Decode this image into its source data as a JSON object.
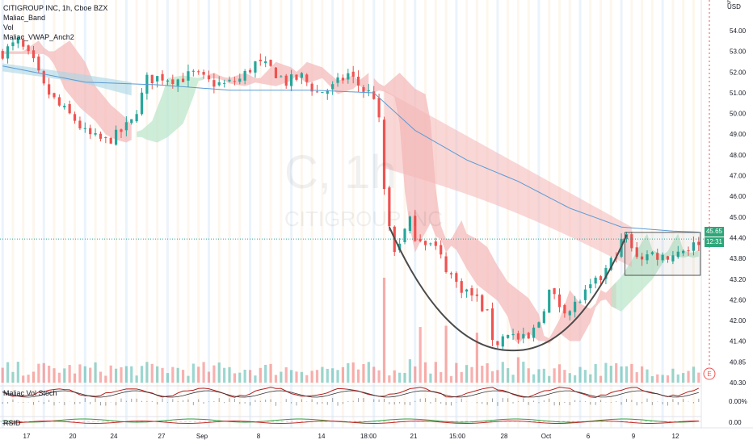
{
  "header": {
    "title": "CITIGROUP INC, 1h, Cboe BZX",
    "indicators": [
      "Maliac_Band",
      "Vol",
      "Maliac_VWAP_Anch2"
    ]
  },
  "subpanes": {
    "vol_stoch_label": "Maliac Vol Stoch",
    "vol_stoch_value": "0.00%",
    "rsid_label": "RSID",
    "rsid_value": "0.00"
  },
  "price_axis": {
    "currency": "USD",
    "top_marker": "5",
    "ticks": [
      "54.00",
      "53.00",
      "52.00",
      "51.00",
      "50.00",
      "49.00",
      "48.00",
      "47.00",
      "46.00",
      "45.00",
      "44.40",
      "43.80",
      "43.20",
      "42.60",
      "42.00",
      "41.40",
      "40.85",
      "40.30"
    ],
    "current_price": "45.65",
    "countdown": "12:31"
  },
  "time_axis": {
    "labels": [
      "17",
      "20",
      "24",
      "27",
      "Sep",
      "8",
      "14",
      "18:00",
      "21",
      "15:00",
      "28",
      "Oct",
      "6",
      "9",
      "12"
    ]
  },
  "event_marker": "E",
  "watermark": {
    "big": "C, 1h",
    "small": "CITIGROUP INC"
  },
  "colors": {
    "up": "#26a69a",
    "down": "#ef5350",
    "band_red": "#f4b6b6",
    "band_green": "#b9e6c9",
    "vwap": "#5b9bd5",
    "cup": "#4a4a4a"
  },
  "chart_data": {
    "type": "candlestick",
    "symbol": "CITIGROUP INC",
    "interval": "1h",
    "exchange": "Cboe BZX",
    "ylim": [
      40.3,
      54.5
    ],
    "close_path": [
      [
        0,
        52.6
      ],
      [
        3,
        53.0
      ],
      [
        6,
        52.2
      ],
      [
        8,
        51.3
      ],
      [
        11,
        50.6
      ],
      [
        14,
        50.1
      ],
      [
        16,
        49.6
      ],
      [
        18,
        49.4
      ],
      [
        20,
        49.3
      ],
      [
        22,
        49.5
      ],
      [
        25,
        50.0
      ],
      [
        27,
        51.0
      ],
      [
        28,
        51.6
      ],
      [
        31,
        51.7
      ],
      [
        34,
        51.6
      ],
      [
        37,
        51.8
      ],
      [
        40,
        51.5
      ],
      [
        43,
        51.4
      ],
      [
        46,
        51.6
      ],
      [
        49,
        52.2
      ],
      [
        52,
        52.0
      ],
      [
        55,
        51.5
      ],
      [
        58,
        51.7
      ],
      [
        61,
        51.1
      ],
      [
        64,
        51.3
      ],
      [
        67,
        51.8
      ],
      [
        70,
        51.2
      ],
      [
        72,
        51.0
      ],
      [
        73,
        50.0
      ],
      [
        74,
        47.5
      ],
      [
        75,
        46.1
      ],
      [
        76,
        45.2
      ],
      [
        77,
        45.6
      ],
      [
        79,
        46.3
      ],
      [
        80,
        45.8
      ],
      [
        82,
        45.6
      ],
      [
        84,
        45.3
      ],
      [
        86,
        44.6
      ],
      [
        88,
        44.0
      ],
      [
        90,
        43.7
      ],
      [
        92,
        43.4
      ],
      [
        94,
        42.8
      ],
      [
        95,
        42.0
      ],
      [
        96,
        41.8
      ],
      [
        98,
        42.2
      ],
      [
        100,
        41.9
      ],
      [
        102,
        41.9
      ],
      [
        104,
        42.6
      ],
      [
        106,
        43.7
      ],
      [
        108,
        43.2
      ],
      [
        110,
        43.0
      ],
      [
        112,
        43.4
      ],
      [
        114,
        43.8
      ],
      [
        116,
        44.2
      ],
      [
        118,
        44.8
      ],
      [
        120,
        45.5
      ],
      [
        121,
        45.8
      ],
      [
        122,
        45.2
      ],
      [
        124,
        45.0
      ],
      [
        126,
        45.1
      ],
      [
        128,
        45.0
      ],
      [
        130,
        45.1
      ],
      [
        132,
        45.3
      ],
      [
        134,
        45.4
      ],
      [
        135,
        45.6
      ]
    ],
    "vwap_path": [
      [
        0,
        52.1
      ],
      [
        16,
        51.5
      ],
      [
        30,
        51.4
      ],
      [
        44,
        51.2
      ],
      [
        60,
        51.2
      ],
      [
        72,
        51.1
      ],
      [
        80,
        49.7
      ],
      [
        90,
        48.6
      ],
      [
        100,
        47.8
      ],
      [
        110,
        46.8
      ],
      [
        120,
        46.1
      ],
      [
        130,
        45.95
      ],
      [
        136,
        45.9
      ]
    ],
    "cup_pattern": {
      "start": [
        75,
        46.1
      ],
      "bottom": [
        99,
        41.5
      ],
      "end": [
        121,
        45.8
      ]
    },
    "consolidation_box": {
      "x": [
        121,
        135
      ],
      "y": [
        44.3,
        45.9
      ]
    },
    "current_price": 45.65,
    "bars": 136
  }
}
